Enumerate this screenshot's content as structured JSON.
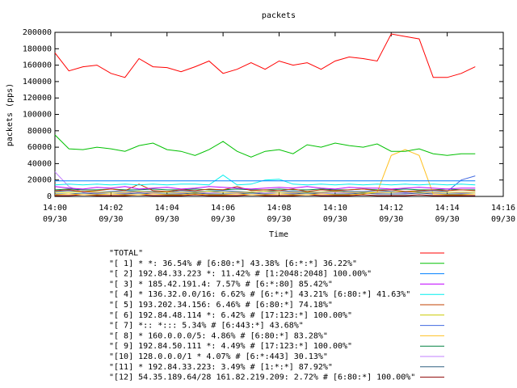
{
  "chart_data": {
    "type": "line",
    "title": "packets",
    "x_label": "Time",
    "y_label": "packets (pps)",
    "x": [
      0,
      0.5,
      1,
      1.5,
      2,
      2.5,
      3,
      3.5,
      4,
      4.5,
      5,
      5.5,
      6,
      6.5,
      7,
      7.5,
      8,
      8.5,
      9,
      9.5,
      10,
      10.5,
      11,
      11.5,
      12,
      12.5,
      13,
      13.5,
      14,
      14.5,
      15
    ],
    "xlim": [
      0,
      16
    ],
    "xticks": [
      {
        "value": 0,
        "label": "14:00 09/30"
      },
      {
        "value": 2,
        "label": "14:02 09/30"
      },
      {
        "value": 4,
        "label": "14:04 09/30"
      },
      {
        "value": 6,
        "label": "14:06 09/30"
      },
      {
        "value": 8,
        "label": "14:08 09/30"
      },
      {
        "value": 10,
        "label": "14:10 09/30"
      },
      {
        "value": 12,
        "label": "14:12 09/30"
      },
      {
        "value": 14,
        "label": "14:14 09/30"
      },
      {
        "value": 16,
        "label": "14:16 09/30"
      }
    ],
    "ylim": [
      0,
      200000
    ],
    "yticks": [
      0,
      20000,
      40000,
      60000,
      80000,
      100000,
      120000,
      140000,
      160000,
      180000,
      200000
    ],
    "series": [
      {
        "name": "\"TOTAL\"",
        "color": "#ff0000",
        "values": [
          175000,
          153000,
          158000,
          160000,
          150000,
          145000,
          168000,
          158000,
          157000,
          152000,
          158000,
          165000,
          150000,
          155000,
          163000,
          155000,
          165000,
          160000,
          163000,
          155000,
          165000,
          170000,
          168000,
          165000,
          198000,
          195000,
          192000,
          145000,
          145000,
          150000,
          158000
        ]
      },
      {
        "name": "\"[ 1] * *: 36.54% # [6:80:*] 43.38% [6:*:*] 36.22%\"",
        "color": "#00c000",
        "values": [
          75000,
          58000,
          57000,
          60000,
          58000,
          55000,
          62000,
          65000,
          57000,
          55000,
          50000,
          57000,
          67000,
          55000,
          48000,
          55000,
          57000,
          52000,
          63000,
          60000,
          65000,
          62000,
          60000,
          64000,
          55000,
          55000,
          58000,
          52000,
          50000,
          52000,
          52000
        ]
      },
      {
        "name": "\"[ 2] 192.84.33.223 *: 11.42% # [1:2048:2048] 100.00%\"",
        "color": "#0080ff",
        "values": [
          19000,
          19000,
          19000,
          19000,
          19000,
          19000,
          19000,
          19000,
          19000,
          19000,
          19000,
          19000,
          19000,
          19000,
          19000,
          19000,
          19000,
          19000,
          19000,
          19000,
          19000,
          19000,
          19000,
          19000,
          19000,
          19000,
          19000,
          19000,
          19000,
          19000,
          19000
        ]
      },
      {
        "name": "\"[ 3] * 185.42.191.4: 7.57% # [6:*:80] 85.42%\"",
        "color": "#c000ff",
        "values": [
          12000,
          10000,
          9000,
          11000,
          10000,
          12000,
          9000,
          10000,
          11000,
          9000,
          10000,
          12000,
          11000,
          10000,
          9000,
          10000,
          11000,
          10000,
          12000,
          10000,
          9000,
          11000,
          10000,
          10000,
          9000,
          10000,
          11000,
          10000,
          9000,
          10000,
          10000
        ]
      },
      {
        "name": "\"[ 4] * 136.32.0.0/16: 6.62% # [6:*:*] 43.21% [6:80:*] 41.63%\"",
        "color": "#00eeee",
        "values": [
          14000,
          15000,
          14000,
          15000,
          14000,
          15000,
          14000,
          15000,
          14000,
          15000,
          15000,
          14000,
          26000,
          14000,
          15000,
          20000,
          21000,
          15000,
          14000,
          15000,
          14000,
          15000,
          14000,
          15000,
          14000,
          15000,
          14000,
          15000,
          14000,
          15000,
          14000
        ]
      },
      {
        "name": "\"[ 5] 193.202.34.156: 6.46% # [6:80:*] 74.18%\"",
        "color": "#c04000",
        "values": [
          7000,
          8000,
          6000,
          7000,
          9000,
          7000,
          15000,
          7000,
          6000,
          8000,
          7000,
          9000,
          8000,
          12000,
          7000,
          8000,
          7000,
          9000,
          6000,
          8000,
          7000,
          8000,
          9000,
          7000,
          8000,
          6000,
          7000,
          8000,
          7000,
          8000,
          7000
        ]
      },
      {
        "name": "\"[ 6] 192.84.48.114 *: 6.42% # [17:123:*] 100.00%\"",
        "color": "#c8c800",
        "values": [
          5000,
          5000,
          6000,
          5000,
          5000,
          5000,
          6000,
          5000,
          5000,
          5000,
          5000,
          6000,
          5000,
          5000,
          5000,
          6000,
          5000,
          5000,
          5000,
          5000,
          6000,
          5000,
          5000,
          5000,
          5000,
          6000,
          5000,
          5000,
          5000,
          5000,
          5000
        ]
      },
      {
        "name": "\"[ 7] *:: *::: 5.34% # [6:443:*] 43.68%\"",
        "color": "#4169e1",
        "values": [
          6000,
          7000,
          6000,
          5000,
          6000,
          7000,
          6000,
          6000,
          5000,
          7000,
          6000,
          6000,
          7000,
          6000,
          5000,
          6000,
          7000,
          6000,
          6000,
          5000,
          7000,
          6000,
          6000,
          7000,
          6000,
          5000,
          6000,
          7000,
          6000,
          20000,
          25000
        ]
      },
      {
        "name": "\"[ 8] * 160.0.0.0/5: 4.86% # [6:80:*] 83.28%\"",
        "color": "#ffc020",
        "values": [
          2000,
          3000,
          2000,
          2000,
          3000,
          2000,
          2000,
          3000,
          2000,
          2000,
          3000,
          2000,
          2000,
          3000,
          2000,
          2000,
          3000,
          2000,
          2000,
          3000,
          2000,
          2000,
          3000,
          5000,
          50000,
          57000,
          50000,
          3000,
          2000,
          2000,
          3000
        ]
      },
      {
        "name": "\"[ 9] 192.84.50.111 *: 4.49% # [17:123:*] 100.00%\"",
        "color": "#008040",
        "values": [
          8000,
          9000,
          8000,
          8000,
          9000,
          8000,
          8000,
          9000,
          8000,
          8000,
          9000,
          8000,
          8000,
          9000,
          8000,
          8000,
          9000,
          8000,
          8000,
          9000,
          8000,
          8000,
          9000,
          8000,
          8000,
          9000,
          8000,
          8000,
          9000,
          8000,
          8000
        ]
      },
      {
        "name": "\"[10] 128.0.0.0/1 * 4.07% # [6:*:443] 30.13%\"",
        "color": "#c080ff",
        "values": [
          30000,
          12000,
          5000,
          4000,
          5000,
          4000,
          5000,
          4000,
          5000,
          4000,
          5000,
          4000,
          5000,
          4000,
          5000,
          4000,
          5000,
          4000,
          5000,
          4000,
          5000,
          4000,
          5000,
          4000,
          5000,
          4000,
          5000,
          4000,
          5000,
          4000,
          5000
        ]
      },
      {
        "name": "\"[11] * 192.84.33.223: 3.49% # [1:*:*] 87.92%\"",
        "color": "#306080",
        "values": [
          3000,
          3000,
          4000,
          3000,
          3000,
          3000,
          4000,
          3000,
          3000,
          3000,
          4000,
          3000,
          3000,
          3000,
          4000,
          3000,
          3000,
          3000,
          4000,
          3000,
          3000,
          3000,
          4000,
          3000,
          3000,
          3000,
          4000,
          3000,
          3000,
          3000,
          3000
        ]
      },
      {
        "name": "\"[12] 54.35.189.64/28 161.82.219.209: 2.72% # [6:80:*] 100.00%\"",
        "color": "#8b0000",
        "values": [
          1000,
          1000,
          2000,
          1000,
          1000,
          1000,
          2000,
          1000,
          1000,
          1000,
          2000,
          1000,
          1000,
          1000,
          2000,
          1000,
          1000,
          1000,
          2000,
          1000,
          1000,
          1000,
          2000,
          1000,
          1000,
          1000,
          2000,
          1000,
          1000,
          1000,
          1000
        ]
      }
    ]
  }
}
